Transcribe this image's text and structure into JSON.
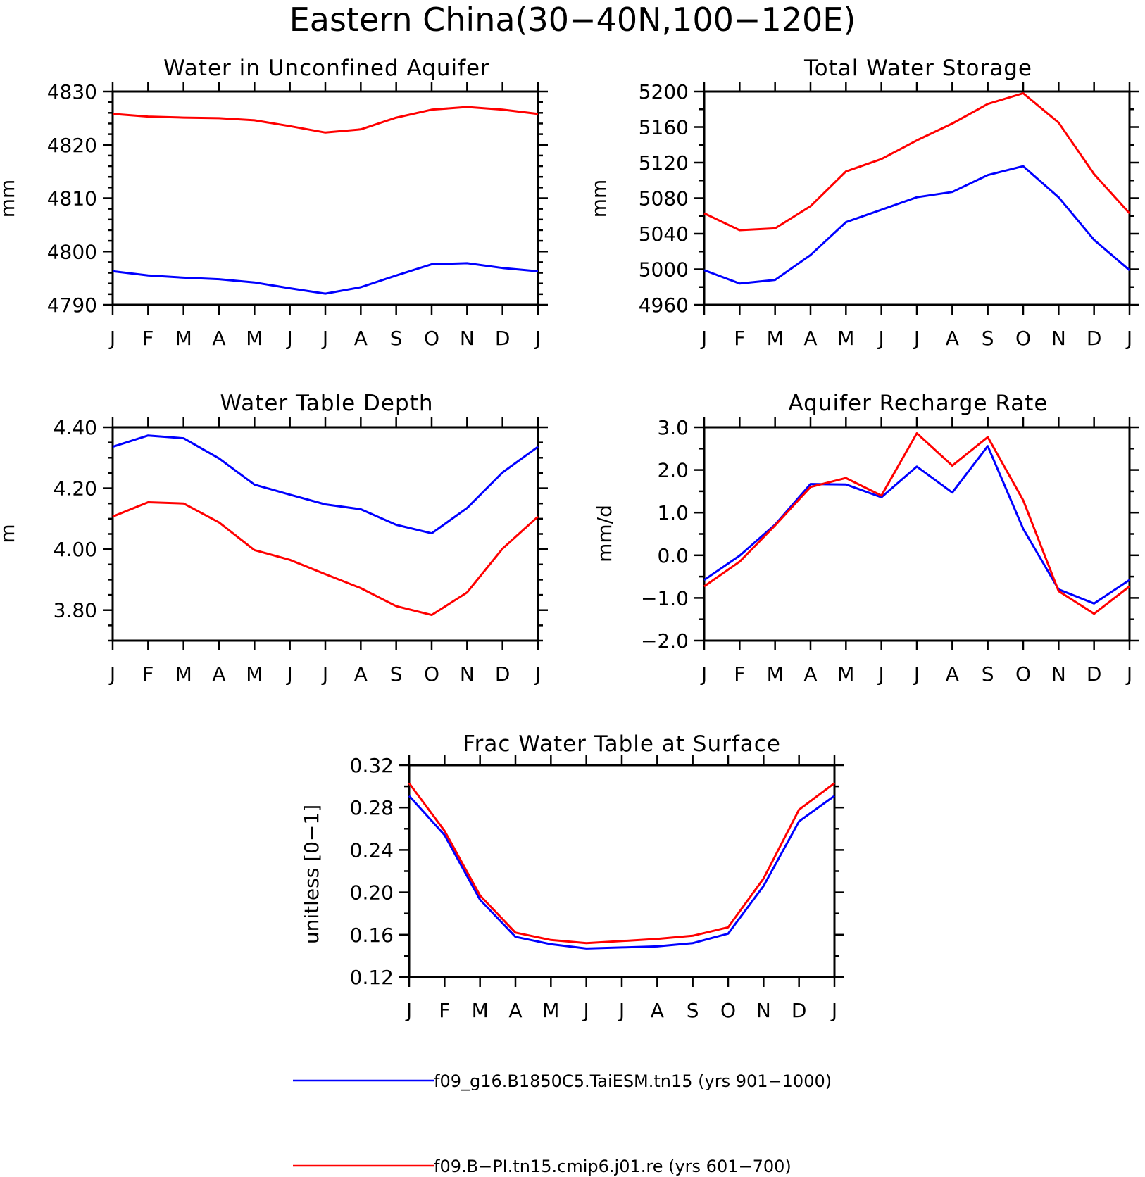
{
  "figure_title": "Eastern China(30−40N,100−120E)",
  "chart_data": [
    {
      "type": "line",
      "title": "Water in Unconfined Aquifer",
      "ylabel": "mm",
      "xlabel": "",
      "x": [
        "J",
        "F",
        "M",
        "A",
        "M",
        "J",
        "J",
        "A",
        "S",
        "O",
        "N",
        "D",
        "J"
      ],
      "ylim": [
        4790,
        4830
      ],
      "yticks": [
        4790,
        4800,
        4810,
        4820,
        4830
      ],
      "ytick_labels": [
        "4790",
        "4800",
        "4810",
        "4820",
        "4830"
      ],
      "minor_step": 2,
      "series": [
        {
          "color": "#0000ff",
          "values": [
            4796.3,
            4795.5,
            4795.1,
            4794.8,
            4794.2,
            4793.1,
            4792.1,
            4793.3,
            4795.5,
            4797.6,
            4797.8,
            4796.9,
            4796.3
          ]
        },
        {
          "color": "#ff0000",
          "values": [
            4825.8,
            4825.3,
            4825.1,
            4825.0,
            4824.6,
            4823.5,
            4822.3,
            4822.9,
            4825.1,
            4826.6,
            4827.1,
            4826.6,
            4825.8
          ]
        }
      ]
    },
    {
      "type": "line",
      "title": "Total Water Storage",
      "ylabel": "mm",
      "xlabel": "",
      "x": [
        "J",
        "F",
        "M",
        "A",
        "M",
        "J",
        "J",
        "A",
        "S",
        "O",
        "N",
        "D",
        "J"
      ],
      "ylim": [
        4960,
        5200
      ],
      "yticks": [
        4960,
        5000,
        5040,
        5080,
        5120,
        5160,
        5200
      ],
      "ytick_labels": [
        "4960",
        "5000",
        "5040",
        "5080",
        "5120",
        "5160",
        "5200"
      ],
      "minor_step": 20,
      "series": [
        {
          "color": "#0000ff",
          "values": [
            4999,
            4984,
            4988,
            5016,
            5053,
            5067,
            5081,
            5087,
            5106,
            5116,
            5081,
            5033,
            4999
          ]
        },
        {
          "color": "#ff0000",
          "values": [
            5063,
            5044,
            5046,
            5071,
            5110,
            5124,
            5145,
            5164,
            5186,
            5198,
            5165,
            5107,
            5063
          ]
        }
      ]
    },
    {
      "type": "line",
      "title": "Water Table Depth",
      "ylabel": "m",
      "xlabel": "",
      "x": [
        "J",
        "F",
        "M",
        "A",
        "M",
        "J",
        "J",
        "A",
        "S",
        "O",
        "N",
        "D",
        "J"
      ],
      "ylim": [
        3.7,
        4.4
      ],
      "yticks": [
        3.8,
        4.0,
        4.2,
        4.4
      ],
      "ytick_labels": [
        "3.80",
        "4.00",
        "4.20",
        "4.40"
      ],
      "minor_step": 0.05,
      "series": [
        {
          "color": "#0000ff",
          "values": [
            4.336,
            4.373,
            4.364,
            4.298,
            4.212,
            4.179,
            4.147,
            4.131,
            4.08,
            4.052,
            4.135,
            4.252,
            4.336
          ]
        },
        {
          "color": "#ff0000",
          "values": [
            4.107,
            4.154,
            4.15,
            4.088,
            3.997,
            3.965,
            3.918,
            3.872,
            3.813,
            3.784,
            3.858,
            4.002,
            4.107
          ]
        }
      ]
    },
    {
      "type": "line",
      "title": "Aquifer Recharge Rate",
      "ylabel": "mm/d",
      "xlabel": "",
      "x": [
        "J",
        "F",
        "M",
        "A",
        "M",
        "J",
        "J",
        "A",
        "S",
        "O",
        "N",
        "D",
        "J"
      ],
      "ylim": [
        -2.0,
        3.0
      ],
      "yticks": [
        -2.0,
        -1.0,
        0.0,
        1.0,
        2.0,
        3.0
      ],
      "ytick_labels": [
        "−2.0",
        "−1.0",
        "0.0",
        "1.0",
        "2.0",
        "3.0"
      ],
      "minor_step": 0.5,
      "series": [
        {
          "color": "#0000ff",
          "values": [
            -0.58,
            -0.01,
            0.72,
            1.67,
            1.66,
            1.36,
            2.08,
            1.47,
            2.56,
            0.62,
            -0.8,
            -1.13,
            -0.58
          ]
        },
        {
          "color": "#ff0000",
          "values": [
            -0.73,
            -0.15,
            0.7,
            1.6,
            1.81,
            1.4,
            2.86,
            2.1,
            2.77,
            1.29,
            -0.84,
            -1.37,
            -0.73
          ]
        }
      ]
    },
    {
      "type": "line",
      "title": "Frac Water Table at Surface",
      "ylabel": "unitless [0−1]",
      "xlabel": "",
      "x": [
        "J",
        "F",
        "M",
        "A",
        "M",
        "J",
        "J",
        "A",
        "S",
        "O",
        "N",
        "D",
        "J"
      ],
      "ylim": [
        0.12,
        0.32
      ],
      "yticks": [
        0.12,
        0.16,
        0.2,
        0.24,
        0.28,
        0.32
      ],
      "ytick_labels": [
        "0.12",
        "0.16",
        "0.20",
        "0.24",
        "0.28",
        "0.32"
      ],
      "minor_step": 0.02,
      "series": [
        {
          "color": "#0000ff",
          "values": [
            0.291,
            0.254,
            0.193,
            0.158,
            0.151,
            0.147,
            0.148,
            0.149,
            0.152,
            0.161,
            0.206,
            0.267,
            0.291
          ]
        },
        {
          "color": "#ff0000",
          "values": [
            0.303,
            0.258,
            0.197,
            0.162,
            0.155,
            0.152,
            0.154,
            0.156,
            0.159,
            0.167,
            0.213,
            0.278,
            0.303
          ]
        }
      ]
    }
  ],
  "legend": [
    {
      "label": "f09_g16.B1850C5.TaiESM.tn15 (yrs 901−1000)",
      "color": "#0000ff"
    },
    {
      "label": "f09.B−PI.tn15.cmip6.j01.re (yrs 601−700)",
      "color": "#ff0000"
    }
  ]
}
